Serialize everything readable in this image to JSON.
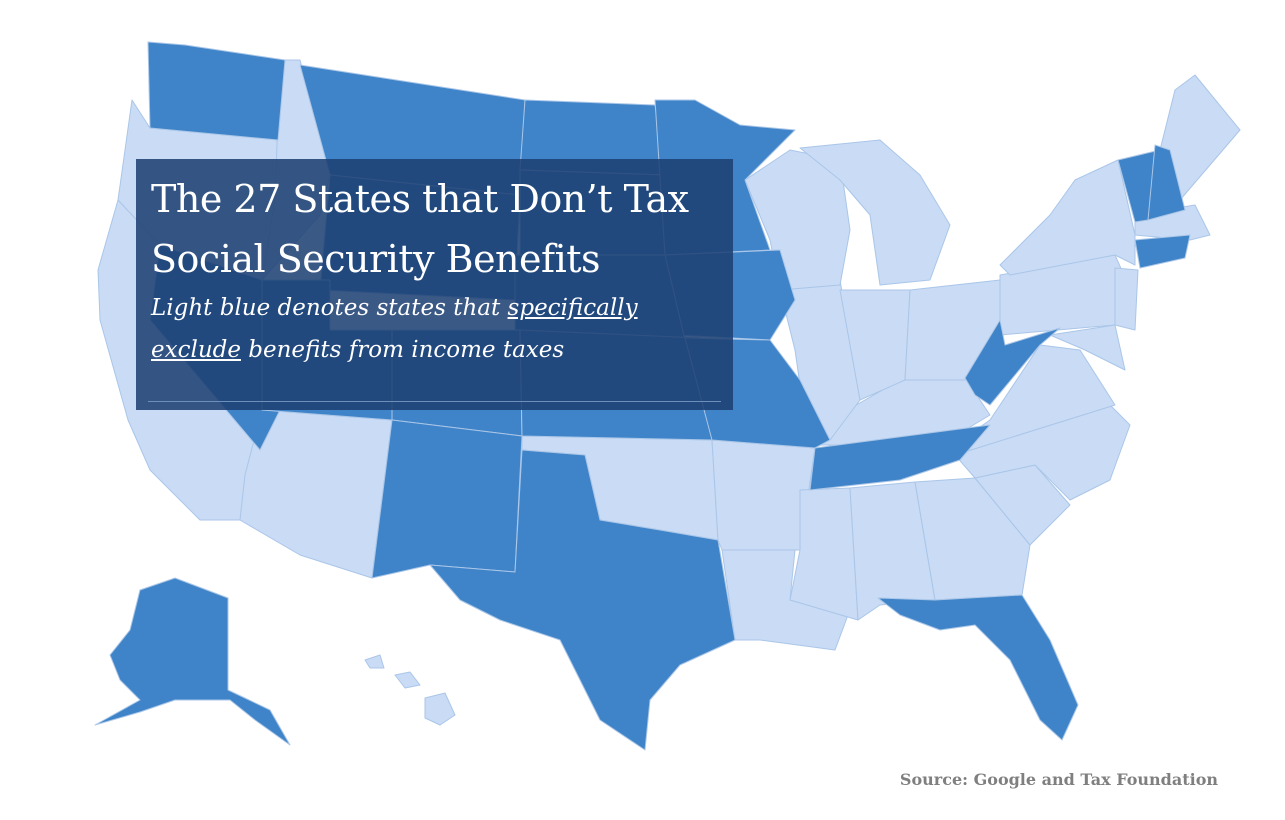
{
  "title": {
    "line1": "The 27 States that Don’t Tax",
    "line2": "Social Security Benefits"
  },
  "subtitle": {
    "part1": "Light blue denotes states that ",
    "emph1": "specifically",
    "emph2": "exclude",
    "part2": " benefits from income taxes"
  },
  "source": "Source: Google and Tax Foundation",
  "colors": {
    "exempt_light": "#c9dbf5",
    "taxed_dark": "#3f84c8",
    "title_panel": "#1e4073"
  },
  "legend": {
    "light_blue": "specifically exclude benefits from income taxes"
  }
}
